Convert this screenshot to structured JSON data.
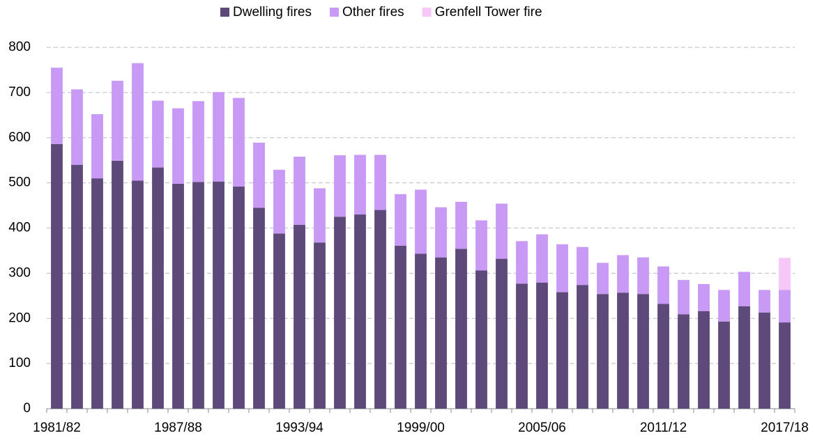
{
  "chart_data": {
    "type": "bar",
    "stacked": true,
    "categories": [
      "1981/82",
      null,
      null,
      null,
      null,
      null,
      "1987/88",
      null,
      null,
      null,
      null,
      null,
      "1993/94",
      null,
      null,
      null,
      null,
      null,
      "1999/00",
      null,
      null,
      null,
      null,
      null,
      "2005/06",
      null,
      null,
      null,
      null,
      null,
      "2011/12",
      null,
      null,
      null,
      null,
      null,
      "2017/18"
    ],
    "series": [
      {
        "name": "Dwelling fires",
        "color": "#5e4a7a",
        "values": [
          586,
          540,
          510,
          549,
          505,
          534,
          498,
          502,
          503,
          492,
          445,
          388,
          407,
          368,
          425,
          430,
          440,
          361,
          343,
          335,
          354,
          306,
          332,
          277,
          279,
          258,
          274,
          254,
          257,
          254,
          232,
          209,
          216,
          193,
          227,
          213,
          191
        ]
      },
      {
        "name": "Other fires",
        "color": "#c89af5",
        "values": [
          169,
          167,
          142,
          177,
          260,
          148,
          167,
          179,
          198,
          196,
          144,
          141,
          151,
          120,
          136,
          132,
          122,
          114,
          142,
          111,
          104,
          111,
          122,
          94,
          107,
          106,
          84,
          69,
          83,
          81,
          83,
          76,
          60,
          70,
          76,
          50,
          72
        ]
      },
      {
        "name": "Grenfell Tower fire",
        "color": "#f7c8f7",
        "values": [
          null,
          null,
          null,
          null,
          null,
          null,
          null,
          null,
          null,
          null,
          null,
          null,
          null,
          null,
          null,
          null,
          null,
          null,
          null,
          null,
          null,
          null,
          null,
          null,
          null,
          null,
          null,
          null,
          null,
          null,
          null,
          null,
          null,
          null,
          null,
          null,
          71
        ]
      }
    ],
    "ylim": [
      0,
      800
    ],
    "yticks": [
      0,
      100,
      200,
      300,
      400,
      500,
      600,
      700,
      800
    ],
    "grid": true,
    "legend": "top"
  }
}
